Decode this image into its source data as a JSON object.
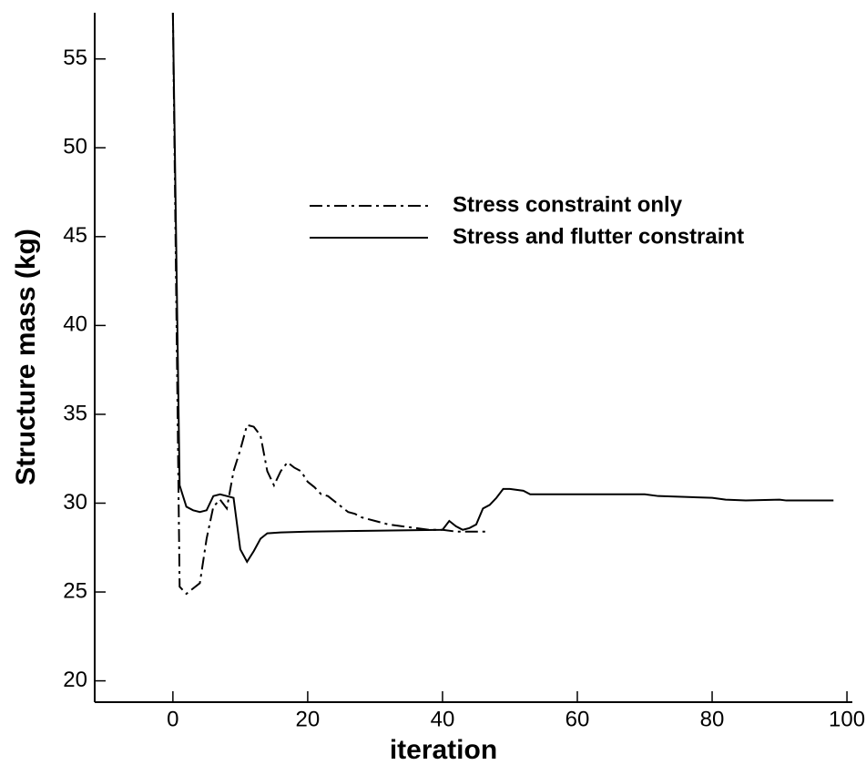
{
  "chart_data": {
    "type": "line",
    "xlabel": "iteration",
    "ylabel": "Structure mass (kg)",
    "xlim": [
      -11.6,
      100.8
    ],
    "ylim": [
      18.8,
      57.6
    ],
    "xticks": [
      0,
      20,
      40,
      60,
      80,
      100
    ],
    "yticks": [
      20,
      25,
      30,
      35,
      40,
      45,
      50,
      55
    ],
    "grid": false,
    "legend": "upper right",
    "series": [
      {
        "name": "Stress constraint only",
        "color": "#000000",
        "dash": "dashdot",
        "x": [
          0,
          1,
          2,
          3,
          4,
          5,
          6,
          7,
          8,
          9,
          10,
          11,
          12,
          13,
          14,
          15,
          16,
          17,
          18,
          19,
          20,
          21,
          22,
          23,
          24,
          25,
          26,
          27,
          28,
          29,
          30,
          32,
          34,
          36,
          38,
          40,
          42,
          44,
          47
        ],
        "values": [
          57.6,
          25.3,
          24.9,
          25.2,
          25.5,
          28,
          29.8,
          30.2,
          29.7,
          31.8,
          33,
          34.4,
          34.3,
          33.8,
          31.8,
          31,
          31.8,
          32.3,
          32,
          31.8,
          31.2,
          30.9,
          30.5,
          30.4,
          30.1,
          29.8,
          29.5,
          29.4,
          29.2,
          29.1,
          29,
          28.8,
          28.7,
          28.6,
          28.5,
          28.5,
          28.4,
          28.4,
          28.4
        ]
      },
      {
        "name": "Stress and flutter constraint",
        "color": "#000000",
        "dash": "solid",
        "x": [
          0,
          1,
          2,
          3,
          4,
          5,
          6,
          7,
          8,
          9,
          10,
          11,
          12,
          13,
          14,
          16,
          20,
          30,
          40,
          41,
          42,
          43,
          44,
          45,
          46,
          47,
          48,
          49,
          50,
          52,
          53,
          60,
          70,
          72,
          80,
          82,
          85,
          90,
          91,
          98
        ],
        "values": [
          57.6,
          31,
          29.8,
          29.6,
          29.5,
          29.6,
          30.4,
          30.5,
          30.4,
          30.3,
          27.4,
          26.7,
          27.3,
          28,
          28.3,
          28.35,
          28.4,
          28.45,
          28.5,
          29,
          28.7,
          28.5,
          28.6,
          28.8,
          29.7,
          29.9,
          30.3,
          30.8,
          30.8,
          30.7,
          30.5,
          30.5,
          30.5,
          30.4,
          30.3,
          30.2,
          30.15,
          30.2,
          30.15,
          30.15
        ]
      }
    ]
  }
}
